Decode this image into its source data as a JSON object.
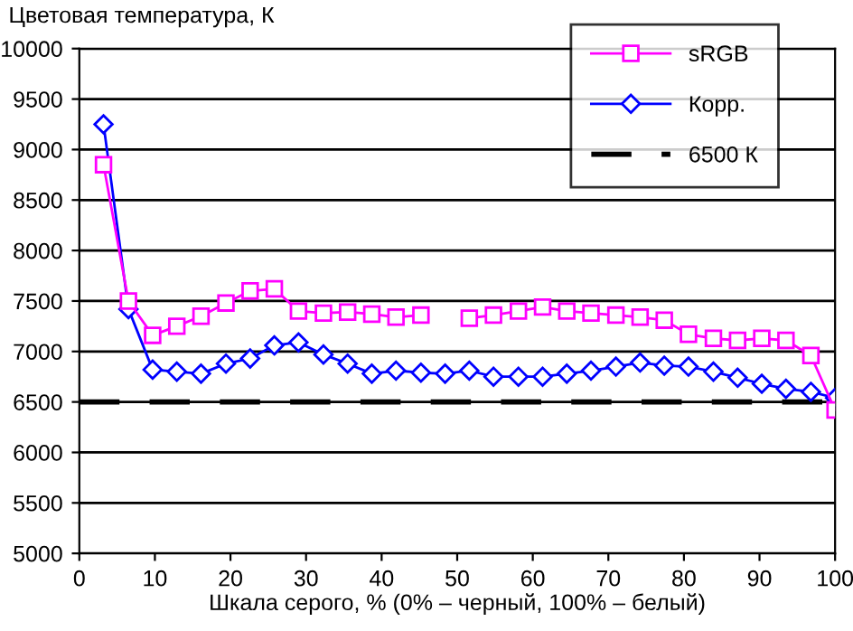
{
  "chart_data": {
    "type": "line",
    "title": "Цветовая температура, К",
    "xlabel": "Шкала серого, % (0% – черный, 100% – белый)",
    "x": [
      3.2,
      6.5,
      9.7,
      12.9,
      16.1,
      19.4,
      22.6,
      25.8,
      29.0,
      32.3,
      35.5,
      38.7,
      41.9,
      45.2,
      48.4,
      51.6,
      54.8,
      58.1,
      61.3,
      64.5,
      67.7,
      71.0,
      74.2,
      77.4,
      80.6,
      83.9,
      87.1,
      90.3,
      93.5,
      96.8,
      100
    ],
    "series": [
      {
        "name": "sRGB",
        "color": "#ff00ff",
        "marker": "square",
        "values": [
          8850,
          7500,
          7160,
          7250,
          7350,
          7480,
          7600,
          7620,
          7400,
          7380,
          7390,
          7370,
          7340,
          7360,
          null,
          7330,
          7360,
          7400,
          7440,
          7400,
          7380,
          7360,
          7340,
          7310,
          7170,
          7130,
          7110,
          7130,
          7110,
          6960,
          6420
        ]
      },
      {
        "name": "Корр.",
        "color": "#0000ff",
        "marker": "diamond",
        "values": [
          9250,
          7420,
          6820,
          6800,
          6780,
          6880,
          6930,
          7060,
          7090,
          6970,
          6880,
          6780,
          6810,
          6790,
          6780,
          6810,
          6750,
          6750,
          6750,
          6780,
          6810,
          6850,
          6890,
          6860,
          6850,
          6800,
          6740,
          6680,
          6630,
          6600,
          6540
        ]
      }
    ],
    "ref_lines": [
      {
        "axis": "y",
        "value": 6500,
        "label": "6500 К",
        "color": "#000000",
        "line_style": "dashed"
      }
    ],
    "xlim": [
      0,
      100
    ],
    "xticks": [
      0,
      10,
      20,
      30,
      40,
      50,
      60,
      70,
      80,
      90,
      100
    ],
    "ylim": [
      5000,
      10000
    ],
    "yticks": [
      5000,
      5500,
      6000,
      6500,
      7000,
      7500,
      8000,
      8500,
      9000,
      9500,
      10000
    ],
    "grid": "y",
    "legend": "top right"
  }
}
